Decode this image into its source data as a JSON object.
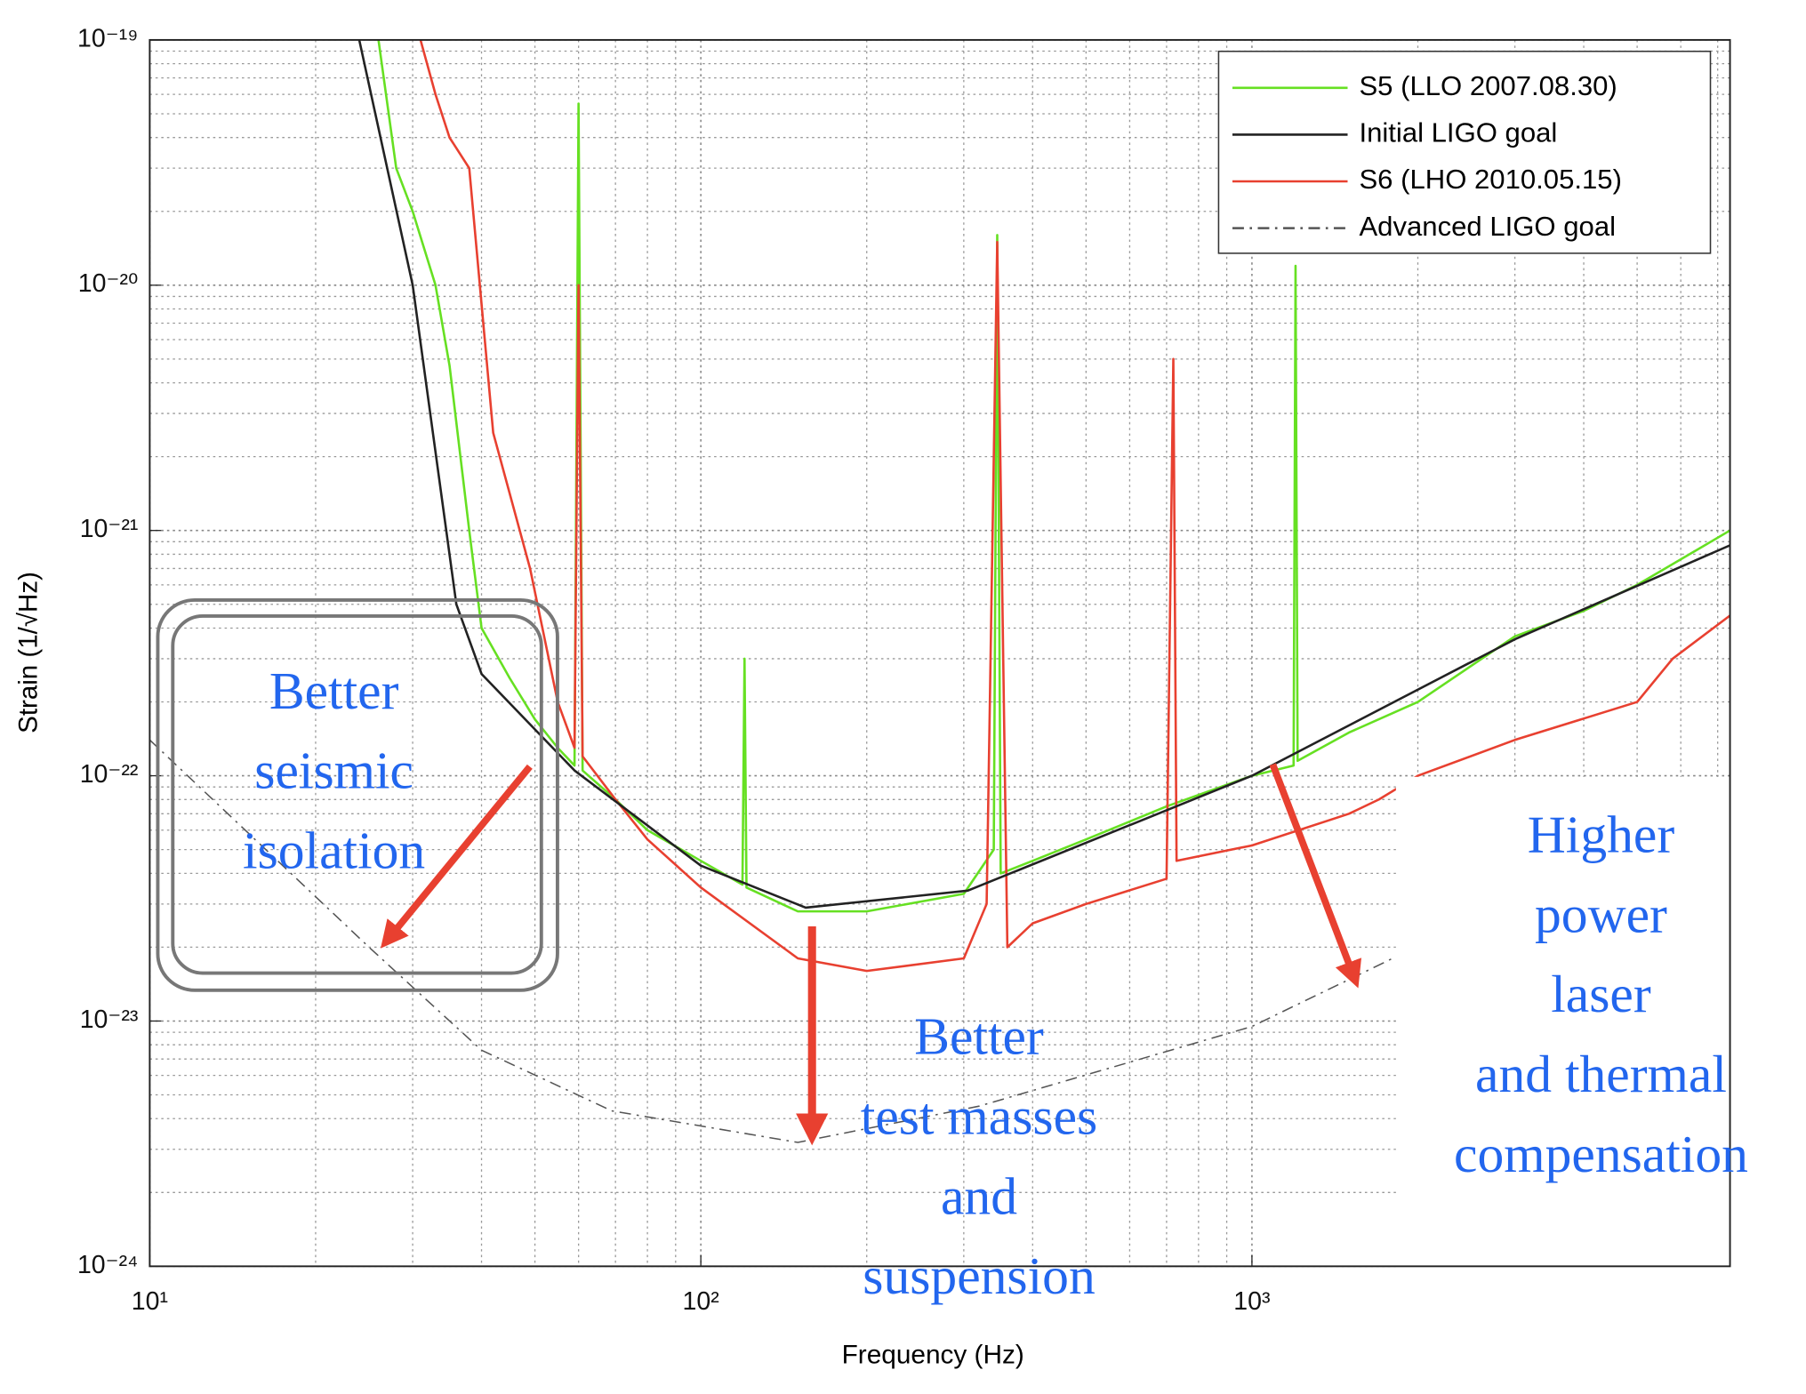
{
  "chart_data": {
    "type": "line",
    "xlabel": "Frequency (Hz)",
    "ylabel": "Strain (1/√Hz)",
    "xscale": "log",
    "yscale": "log",
    "xlim": [
      10,
      7370
    ],
    "ylim": [
      1e-24,
      1e-19
    ],
    "xticks": [
      {
        "value": 10,
        "label": "10¹"
      },
      {
        "value": 100,
        "label": "10²"
      },
      {
        "value": 1000,
        "label": "10³"
      }
    ],
    "yticks": [
      {
        "value": 1e-24,
        "label": "10⁻²⁴"
      },
      {
        "value": 1e-23,
        "label": "10⁻²³"
      },
      {
        "value": 1e-22,
        "label": "10⁻²²"
      },
      {
        "value": 1e-21,
        "label": "10⁻²¹"
      },
      {
        "value": 1e-20,
        "label": "10⁻²⁰"
      },
      {
        "value": 1e-19,
        "label": "10⁻¹⁹"
      }
    ],
    "xminorticks": [
      20,
      30,
      40,
      50,
      60,
      70,
      80,
      90,
      200,
      300,
      400,
      500,
      600,
      700,
      800,
      900,
      2000,
      3000,
      4000,
      5000,
      6000,
      7000
    ],
    "yminorticks": [
      2e-24,
      3e-24,
      4e-24,
      5e-24,
      6e-24,
      7e-24,
      8e-24,
      9e-24,
      2e-23,
      3e-23,
      4e-23,
      5e-23,
      6e-23,
      7e-23,
      8e-23,
      9e-23,
      2e-22,
      3e-22,
      4e-22,
      5e-22,
      6e-22,
      7e-22,
      8e-22,
      9e-22,
      2e-21,
      3e-21,
      4e-21,
      5e-21,
      6e-21,
      7e-21,
      8e-21,
      9e-21,
      2e-20,
      3e-20,
      4e-20,
      5e-20,
      6e-20,
      7e-20,
      8e-20,
      9e-20
    ],
    "grid": true,
    "legend": "upper right",
    "series": [
      {
        "name": "S5 (LLO 2007.08.30)",
        "color": "#66e022",
        "line_style": "solid",
        "x": [
          26,
          28,
          30,
          33,
          35,
          38,
          40,
          45,
          50,
          55,
          59,
          60,
          61,
          70,
          80,
          100,
          119,
          120,
          121,
          150,
          200,
          300,
          340,
          345,
          350,
          400,
          500,
          700,
          1000,
          1190,
          1200,
          1210,
          1500,
          2000,
          3000,
          4000,
          5000,
          7370
        ],
        "values": [
          1e-19,
          3e-20,
          2e-20,
          1e-20,
          4.7e-21,
          1e-21,
          4e-22,
          2.5e-22,
          1.7e-22,
          1.3e-22,
          1.1e-22,
          5.5e-20,
          1.05e-22,
          8e-23,
          6e-23,
          4.5e-23,
          3.6e-23,
          3e-22,
          3.5e-23,
          2.8e-23,
          2.8e-23,
          3.3e-23,
          5e-23,
          1.6e-20,
          4e-23,
          4.5e-23,
          5.5e-23,
          7.5e-23,
          1e-22,
          1.1e-22,
          1.2e-20,
          1.15e-22,
          1.5e-22,
          2e-22,
          3.7e-22,
          4.7e-22,
          6e-22,
          1e-21
        ]
      },
      {
        "name": "Initial LIGO goal",
        "color": "#222222",
        "line_style": "solid",
        "x": [
          24,
          30,
          36,
          40,
          59,
          100,
          155,
          305,
          1000,
          3000,
          7370
        ],
        "values": [
          1e-19,
          1e-20,
          5e-22,
          2.6e-22,
          1.05e-22,
          4.3e-23,
          2.9e-23,
          3.4e-23,
          1e-22,
          3.6e-22,
          8.7e-22
        ]
      },
      {
        "name": "S6 (LHO 2010.05.15)",
        "color": "#e84030",
        "line_style": "solid",
        "x": [
          31,
          33,
          35,
          38,
          42,
          49,
          55,
          59,
          60,
          61,
          70,
          80,
          100,
          150,
          200,
          300,
          330,
          345,
          360,
          400,
          500,
          700,
          720,
          730,
          1000,
          1500,
          1700,
          2000,
          3000,
          5000,
          5800,
          7370
        ],
        "values": [
          1e-19,
          6e-20,
          4e-20,
          3e-20,
          2.5e-21,
          7e-22,
          2e-22,
          1.3e-22,
          1e-20,
          1.2e-22,
          8e-23,
          5.5e-23,
          3.5e-23,
          1.8e-23,
          1.6e-23,
          1.8e-23,
          3e-23,
          1.5e-20,
          2e-23,
          2.5e-23,
          3e-23,
          3.8e-23,
          5e-21,
          4.5e-23,
          5.2e-23,
          7e-23,
          8e-23,
          1e-22,
          1.4e-22,
          2e-22,
          3e-22,
          4.5e-22
        ]
      },
      {
        "name": "Advanced LIGO goal",
        "color": "#555555",
        "line_style": "dash-dot",
        "x": [
          10,
          25,
          40,
          69,
          150,
          320,
          1000,
          1800
        ],
        "values": [
          1.4e-22,
          2e-23,
          7.6e-24,
          4.3e-24,
          3.2e-24,
          4.5e-24,
          9.5e-24,
          1.8e-23
        ]
      }
    ],
    "annotations": [
      {
        "lines": [
          "Better",
          "seismic",
          "isolation"
        ]
      },
      {
        "lines": [
          "Better",
          "test masses",
          "and",
          "suspension"
        ]
      },
      {
        "lines": [
          "Higher",
          "power",
          "laser",
          "and thermal",
          "compensation"
        ]
      }
    ]
  }
}
